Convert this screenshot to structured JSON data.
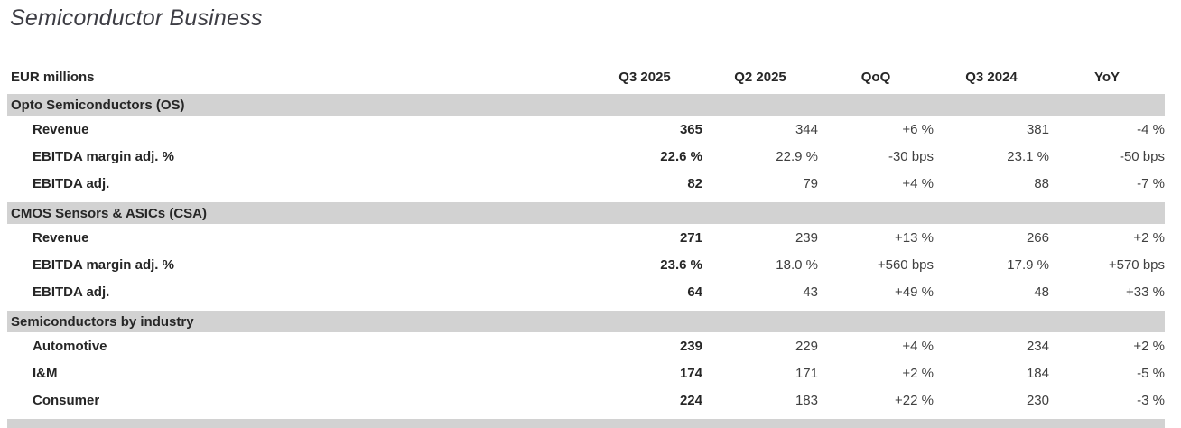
{
  "title": "Semiconductor Business",
  "table": {
    "unit_label": "EUR millions",
    "columns": [
      "Q3 2025",
      "Q2 2025",
      "QoQ",
      "Q3 2024",
      "YoY"
    ],
    "sections": [
      {
        "header": "Opto Semiconductors (OS)",
        "rows": [
          {
            "label": "Revenue",
            "values": [
              "365",
              "344",
              "+6 %",
              "381",
              "-4 %"
            ]
          },
          {
            "label": "EBITDA margin adj. %",
            "values": [
              "22.6 %",
              "22.9 %",
              "-30 bps",
              "23.1 %",
              "-50 bps"
            ]
          },
          {
            "label": "EBITDA adj.",
            "values": [
              "82",
              "79",
              "+4 %",
              "88",
              "-7 %"
            ]
          }
        ]
      },
      {
        "header": "CMOS Sensors & ASICs (CSA)",
        "rows": [
          {
            "label": "Revenue",
            "values": [
              "271",
              "239",
              "+13 %",
              "266",
              "+2 %"
            ]
          },
          {
            "label": "EBITDA margin adj. %",
            "values": [
              "23.6 %",
              "18.0 %",
              "+560 bps",
              "17.9 %",
              "+570 bps"
            ]
          },
          {
            "label": "EBITDA adj.",
            "values": [
              "64",
              "43",
              "+49 %",
              "48",
              "+33 %"
            ]
          }
        ]
      },
      {
        "header": "Semiconductors by industry",
        "rows": [
          {
            "label": "Automotive",
            "values": [
              "239",
              "229",
              "+4 %",
              "234",
              "+2 %"
            ]
          },
          {
            "label": "I&M",
            "values": [
              "174",
              "171",
              "+2 %",
              "184",
              "-5 %"
            ]
          },
          {
            "label": "Consumer",
            "values": [
              "224",
              "183",
              "+22 %",
              "230",
              "-3 %"
            ]
          }
        ]
      }
    ],
    "partial_next_section_visible": true
  },
  "colors": {
    "section_band": "#d2d2d2",
    "label_text": "#262626",
    "value_text": "#404040",
    "title_text": "#3d3d44",
    "background": "#ffffff"
  }
}
